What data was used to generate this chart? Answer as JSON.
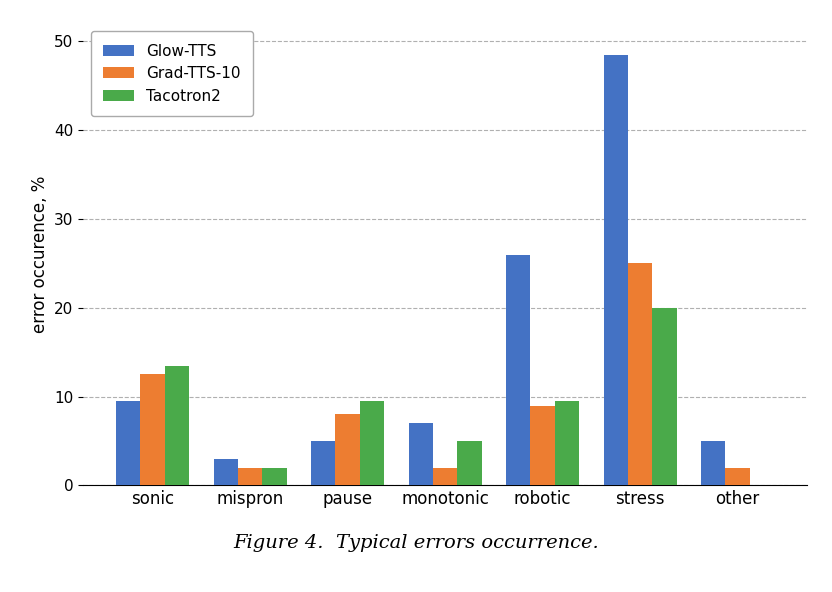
{
  "categories": [
    "sonic",
    "mispron",
    "pause",
    "monotonic",
    "robotic",
    "stress",
    "other"
  ],
  "series": {
    "Glow-TTS": [
      9.5,
      3.0,
      5.0,
      7.0,
      26.0,
      48.5,
      5.0
    ],
    "Grad-TTS-10": [
      12.5,
      2.0,
      8.0,
      2.0,
      9.0,
      25.0,
      2.0
    ],
    "Tacotron2": [
      13.5,
      2.0,
      9.5,
      5.0,
      9.5,
      20.0,
      0.0
    ]
  },
  "colors": {
    "Glow-TTS": "#4472c4",
    "Grad-TTS-10": "#ed7d31",
    "Tacotron2": "#4aaa4a"
  },
  "ylabel": "error occurence, %",
  "ylim": [
    0,
    52
  ],
  "yticks": [
    0,
    10,
    20,
    30,
    40,
    50
  ],
  "caption_italic": "Figure 4.",
  "caption_normal": "  Typical errors occurrence.",
  "legend_loc": "upper left",
  "bar_width": 0.25,
  "grid_color": "#b0b0b0",
  "grid_linestyle": "--",
  "background_color": "#ffffff"
}
